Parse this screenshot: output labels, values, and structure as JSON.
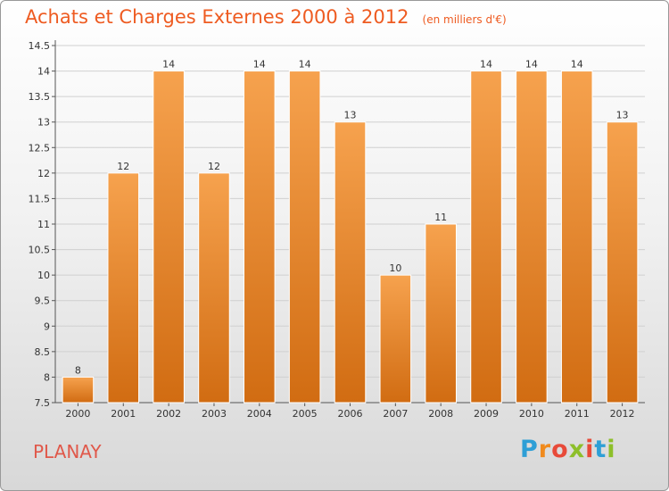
{
  "title": "Achats et Charges Externes 2000 à 2012",
  "subtitle": "(en milliers d'€)",
  "town": "PLANAY",
  "brand": {
    "text": "Proxiti",
    "letter_colors": [
      "#2e9fd6",
      "#f08a1c",
      "#e84a39",
      "#8dbf2a",
      "#e84a39",
      "#2e9fd6",
      "#8dbf2a"
    ]
  },
  "colors": {
    "bar_top": "#f6a24e",
    "bar_bottom": "#d16c12",
    "text": "#333333",
    "grid": "#d0d0d0"
  },
  "chart_data": {
    "type": "bar",
    "categories": [
      "2000",
      "2001",
      "2002",
      "2003",
      "2004",
      "2005",
      "2006",
      "2007",
      "2008",
      "2009",
      "2010",
      "2011",
      "2012"
    ],
    "values": [
      8,
      12,
      14,
      12,
      14,
      14,
      13,
      10,
      11,
      14,
      14,
      14,
      13
    ],
    "ylim": [
      7.5,
      14.5
    ],
    "yticks": [
      "7.5",
      "8",
      "8.5",
      "9",
      "9.5",
      "10",
      "10.5",
      "11",
      "11.5",
      "12",
      "12.5",
      "13",
      "13.5",
      "14",
      "14.5"
    ],
    "grid": true,
    "legend": "none"
  }
}
